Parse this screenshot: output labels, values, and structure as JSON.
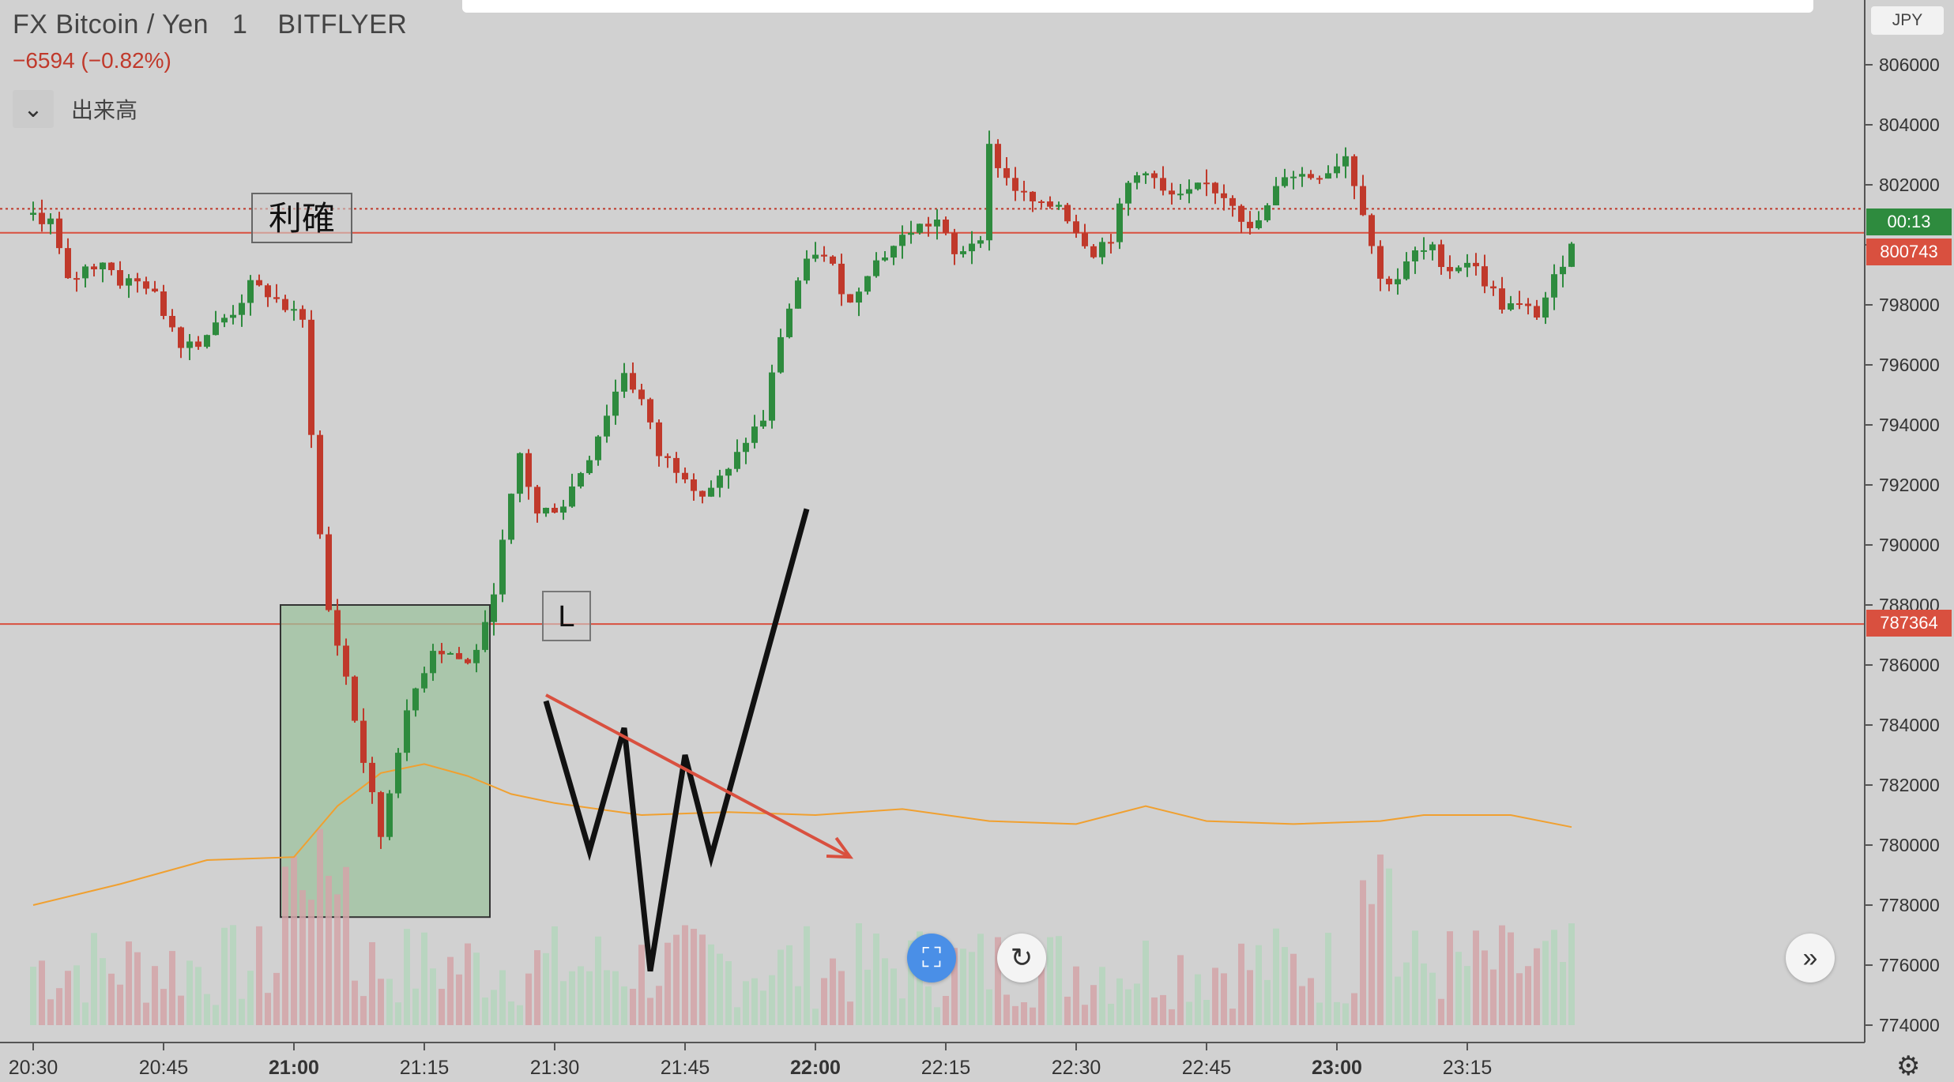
{
  "header": {
    "symbol": "FX Bitcoin / Yen",
    "interval": "1",
    "exchange": "BITFLYER",
    "change": "−6594 (−0.82%)"
  },
  "volume_indicator": {
    "label": "出来高",
    "toggle_icon": "chevron-down-icon"
  },
  "currency_label": "JPY",
  "badges": {
    "countdown": "00:13",
    "last_price": "800743",
    "alert_line": "787364"
  },
  "annotations": {
    "take_profit_label": "利確",
    "long_label": "L"
  },
  "controls": {
    "fit_icon": "fit-screen-icon",
    "reset_icon": "reset-icon",
    "scroll_icon": "double-chevron-right-icon",
    "settings_icon": "gear-icon"
  },
  "colors": {
    "up": "#2e8b3e",
    "down": "#c0392b",
    "volume_up": "#b5d6bd",
    "volume_down": "#d4a4a8",
    "volume_ma": "#f0a030",
    "background": "#d1d1d1",
    "position_box": "#9cc29e"
  },
  "chart_data": {
    "type": "candlestick",
    "price_axis": {
      "min": 774000,
      "max": 806000,
      "ticks": [
        774000,
        776000,
        778000,
        780000,
        782000,
        784000,
        786000,
        788000,
        790000,
        792000,
        794000,
        796000,
        798000,
        800000,
        802000,
        804000,
        806000
      ]
    },
    "tick_labels": [
      "774000",
      "776000",
      "778000",
      "780000",
      "782000",
      "784000",
      "786000",
      "788000",
      "790000",
      "792000",
      "794000",
      "796000",
      "798000",
      "800000",
      "802000",
      "804000",
      "806000"
    ],
    "time_axis": {
      "labels": [
        "20:30",
        "20:45",
        "21:00",
        "21:15",
        "21:30",
        "21:45",
        "22:00",
        "22:15",
        "22:30",
        "22:45",
        "23:00",
        "23:15"
      ],
      "bold": [
        false,
        false,
        true,
        false,
        false,
        false,
        true,
        false,
        false,
        false,
        true,
        false
      ],
      "first_minute": 0,
      "last_minute": 177
    },
    "reference_lines": [
      {
        "price": 801200,
        "style": "dotted",
        "color": "#c0392b"
      },
      {
        "price": 800400,
        "style": "solid",
        "color": "#d9503f"
      },
      {
        "price": 787364,
        "style": "solid",
        "color": "#d9503f"
      }
    ],
    "price_path": [
      [
        0,
        801000
      ],
      [
        2,
        800800
      ],
      [
        4,
        798700
      ],
      [
        6,
        799200
      ],
      [
        8,
        799500
      ],
      [
        10,
        798800
      ],
      [
        13,
        798700
      ],
      [
        15,
        797800
      ],
      [
        17,
        796800
      ],
      [
        19,
        796800
      ],
      [
        21,
        797300
      ],
      [
        23,
        797800
      ],
      [
        25,
        798600
      ],
      [
        27,
        798400
      ],
      [
        29,
        797900
      ],
      [
        31,
        797400
      ],
      [
        33,
        790300
      ],
      [
        34,
        787800
      ],
      [
        36,
        785600
      ],
      [
        38,
        782800
      ],
      [
        40,
        780300
      ],
      [
        42,
        783300
      ],
      [
        44,
        785200
      ],
      [
        46,
        786600
      ],
      [
        48,
        786400
      ],
      [
        50,
        786000
      ],
      [
        52,
        787200
      ],
      [
        54,
        790000
      ],
      [
        56,
        793000
      ],
      [
        58,
        791000
      ],
      [
        61,
        791400
      ],
      [
        64,
        793000
      ],
      [
        66,
        794400
      ],
      [
        68,
        795800
      ],
      [
        70,
        794800
      ],
      [
        72,
        793000
      ],
      [
        75,
        792400
      ],
      [
        77,
        791700
      ],
      [
        80,
        792400
      ],
      [
        82,
        793500
      ],
      [
        84,
        794200
      ],
      [
        86,
        797000
      ],
      [
        88,
        798800
      ],
      [
        90,
        799800
      ],
      [
        92,
        799200
      ],
      [
        94,
        798000
      ],
      [
        96,
        799200
      ],
      [
        98,
        799700
      ],
      [
        101,
        800500
      ],
      [
        104,
        800800
      ],
      [
        106,
        799600
      ],
      [
        109,
        800400
      ],
      [
        110,
        803200
      ],
      [
        112,
        802200
      ],
      [
        114,
        801600
      ],
      [
        116,
        801200
      ],
      [
        118,
        801400
      ],
      [
        120,
        800500
      ],
      [
        122,
        799800
      ],
      [
        124,
        800300
      ],
      [
        126,
        802000
      ],
      [
        128,
        802600
      ],
      [
        130,
        801700
      ],
      [
        132,
        801500
      ],
      [
        135,
        802000
      ],
      [
        138,
        801500
      ],
      [
        140,
        800400
      ],
      [
        142,
        801200
      ],
      [
        144,
        802400
      ],
      [
        147,
        802300
      ],
      [
        149,
        802500
      ],
      [
        151,
        803000
      ],
      [
        153,
        801200
      ],
      [
        155,
        798800
      ],
      [
        157,
        798900
      ],
      [
        159,
        799700
      ],
      [
        161,
        799800
      ],
      [
        163,
        799200
      ],
      [
        165,
        799500
      ],
      [
        167,
        798800
      ],
      [
        169,
        798000
      ],
      [
        171,
        797900
      ],
      [
        173,
        797700
      ],
      [
        175,
        798800
      ],
      [
        177,
        800200
      ]
    ],
    "volume_ma": [
      [
        0,
        778000
      ],
      [
        10,
        778700
      ],
      [
        20,
        779500
      ],
      [
        30,
        779600
      ],
      [
        35,
        781300
      ],
      [
        40,
        782400
      ],
      [
        45,
        782700
      ],
      [
        50,
        782300
      ],
      [
        55,
        781700
      ],
      [
        60,
        781400
      ],
      [
        70,
        781000
      ],
      [
        80,
        781100
      ],
      [
        90,
        781000
      ],
      [
        100,
        781200
      ],
      [
        110,
        780800
      ],
      [
        120,
        780700
      ],
      [
        128,
        781300
      ],
      [
        135,
        780800
      ],
      [
        145,
        780700
      ],
      [
        155,
        780800
      ],
      [
        160,
        781000
      ],
      [
        170,
        781000
      ],
      [
        177,
        780600
      ]
    ],
    "position_box": {
      "top_price": 788000,
      "bottom_price": 777600,
      "start_minute": 29,
      "end_minute": 52
    },
    "drawings": [
      {
        "type": "polyline",
        "color": "#111111",
        "points": [
          [
            59,
            784800
          ],
          [
            64,
            779800
          ],
          [
            68,
            783900
          ],
          [
            71,
            775800
          ],
          [
            75,
            783000
          ],
          [
            78,
            779600
          ],
          [
            89,
            791200
          ]
        ]
      },
      {
        "type": "arrow",
        "color": "#d9503f",
        "points": [
          [
            59,
            785000
          ],
          [
            94,
            779600
          ]
        ]
      }
    ]
  }
}
